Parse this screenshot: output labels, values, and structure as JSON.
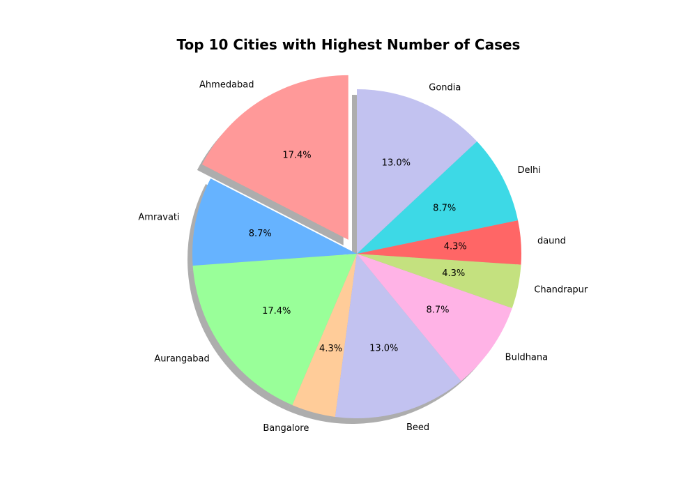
{
  "chart_data": {
    "type": "pie",
    "title": "Top 10 Cities with Highest Number of Cases",
    "categories": [
      "Ahmedabad",
      "Amravati",
      "Aurangabad",
      "Bangalore",
      "Beed",
      "Buldhana",
      "Chandrapur",
      "daund",
      "Delhi",
      "Gondia"
    ],
    "values": [
      17.4,
      8.7,
      17.4,
      4.3,
      13.0,
      8.7,
      4.3,
      4.3,
      8.7,
      13.0
    ],
    "percent_labels": [
      "17.4%",
      "8.7%",
      "17.4%",
      "4.3%",
      "13.0%",
      "8.7%",
      "4.3%",
      "4.3%",
      "8.7%",
      "13.0%"
    ],
    "colors": [
      "#ff9999",
      "#66b3ff",
      "#99ff99",
      "#ffcc99",
      "#c2c2f0",
      "#ffb3e6",
      "#c4e17f",
      "#ff6666",
      "#3dd9e6",
      "#c2c2f0"
    ],
    "exploded": [
      "Ahmedabad"
    ],
    "shadow": true,
    "start_angle_deg": 90,
    "direction": "counterclockwise"
  }
}
